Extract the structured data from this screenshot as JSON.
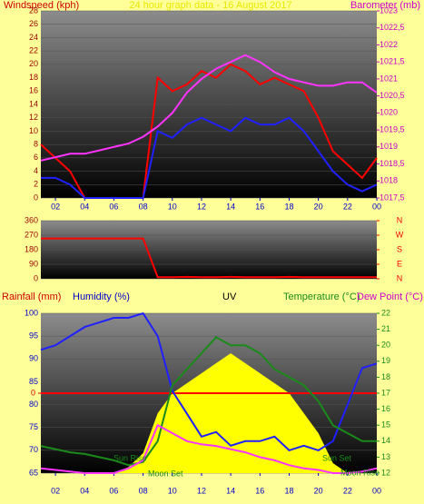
{
  "chart_data": [
    {
      "type": "line",
      "title": "24 hour graph data - 16 August 2017",
      "y_label": "Windspeed (kph)",
      "y2_label": "Barometer (mb)",
      "x": [
        1,
        2,
        3,
        4,
        5,
        6,
        7,
        8,
        9,
        10,
        11,
        12,
        13,
        14,
        15,
        16,
        17,
        18,
        19,
        20,
        21,
        22,
        23,
        24
      ],
      "xlim": [
        1,
        24
      ],
      "xticks": [
        {
          "value": 2,
          "label": "02"
        },
        {
          "value": 4,
          "label": "04"
        },
        {
          "value": 6,
          "label": "06"
        },
        {
          "value": 8,
          "label": "08"
        },
        10,
        12,
        14,
        16,
        18,
        20,
        22,
        {
          "value": 24,
          "label": "00"
        }
      ],
      "ylim": [
        0,
        28
      ],
      "yticks": [
        0,
        2,
        4,
        6,
        8,
        10,
        12,
        14,
        16,
        18,
        20,
        22,
        24,
        26,
        28
      ],
      "y2lim": [
        1017.5,
        1023
      ],
      "y2ticks": [
        {
          "value": 1017.5,
          "label": "1017,5"
        },
        1018,
        {
          "value": 1018.5,
          "label": "1018,5"
        },
        1019,
        {
          "value": 1019.5,
          "label": "1019,5"
        },
        1020,
        {
          "value": 1020.5,
          "label": "1020,5"
        },
        1021,
        {
          "value": 1021.5,
          "label": "1021,5"
        },
        1022,
        {
          "value": 1022.5,
          "label": "1022,5"
        },
        1023
      ],
      "series": [
        {
          "color": "#ff0000",
          "values": [
            8,
            6,
            4,
            0,
            0,
            0,
            0,
            0,
            18,
            16,
            17,
            19,
            18,
            20,
            19,
            17,
            18,
            17,
            16,
            12,
            7,
            5,
            3,
            6
          ]
        },
        {
          "color": "#2020ff",
          "values": [
            3,
            3,
            2,
            0,
            0,
            0,
            0,
            0,
            10,
            9,
            11,
            12,
            11,
            10,
            12,
            11,
            11,
            12,
            10,
            7,
            4,
            2,
            1,
            2
          ]
        },
        {
          "color": "#ff33ff",
          "axis": "y2",
          "values": [
            1018.6,
            1018.7,
            1018.8,
            1018.8,
            1018.9,
            1019.0,
            1019.1,
            1019.3,
            1019.6,
            1020.0,
            1020.6,
            1021.0,
            1021.3,
            1021.5,
            1021.7,
            1021.5,
            1021.2,
            1021.0,
            1020.9,
            1020.8,
            1020.8,
            1020.9,
            1020.9,
            1020.6
          ]
        }
      ]
    },
    {
      "type": "line",
      "x": [
        1,
        2,
        3,
        4,
        5,
        6,
        7,
        8,
        9,
        10,
        11,
        12,
        13,
        14,
        15,
        16,
        17,
        18,
        19,
        20,
        21,
        22,
        23,
        24
      ],
      "xlim": [
        1,
        24
      ],
      "ylim": [
        0,
        360
      ],
      "yticks": [
        0,
        90,
        180,
        270,
        360
      ],
      "y2ticks": [
        {
          "value": 360,
          "label": "N"
        },
        {
          "value": 270,
          "label": "W"
        },
        {
          "value": 180,
          "label": "S"
        },
        {
          "value": 90,
          "label": "E"
        },
        {
          "value": 0,
          "label": "N"
        }
      ],
      "series": [
        {
          "color": "#ff0000",
          "values": [
            250,
            250,
            250,
            250,
            250,
            250,
            250,
            250,
            10,
            10,
            12,
            10,
            10,
            12,
            10,
            10,
            10,
            12,
            10,
            10,
            10,
            10,
            10,
            10
          ]
        }
      ]
    },
    {
      "type": "line",
      "labels": [
        "Rainfall (mm)",
        "Humidity (%)",
        "UV",
        "Temperature (°C)",
        "Dew Point (°C)"
      ],
      "x": [
        1,
        2,
        3,
        4,
        5,
        6,
        7,
        8,
        9,
        10,
        11,
        12,
        13,
        14,
        15,
        16,
        17,
        18,
        19,
        20,
        21,
        22,
        23,
        24
      ],
      "xlim": [
        1,
        24
      ],
      "xticks": [
        {
          "value": 2,
          "label": "02"
        },
        {
          "value": 4,
          "label": "04"
        },
        {
          "value": 6,
          "label": "06"
        },
        {
          "value": 8,
          "label": "08"
        },
        10,
        12,
        14,
        16,
        18,
        20,
        22,
        {
          "value": 24,
          "label": "00"
        }
      ],
      "ylim": [
        65,
        100
      ],
      "yticks": [
        65,
        70,
        75,
        80,
        85,
        90,
        95,
        100
      ],
      "y2lim": [
        12,
        22
      ],
      "y2ticks": [
        12,
        13,
        14,
        15,
        16,
        17,
        18,
        19,
        20,
        21,
        22
      ],
      "y3lim": [
        -1,
        1
      ],
      "y3ticks": [
        0
      ],
      "y4lim": [
        0,
        8
      ],
      "annotations": [
        "Sun Rise",
        "Moon Set",
        "Sun Set",
        "Moon Rise"
      ],
      "series": [
        {
          "color": "#ffff00",
          "axis": "y4",
          "style": "area",
          "values": [
            0,
            0,
            0,
            0,
            0,
            0,
            0.3,
            1,
            3,
            4,
            4.5,
            5,
            5.5,
            6,
            5.5,
            5,
            4.5,
            4,
            3,
            2,
            0.5,
            0,
            0,
            0
          ]
        },
        {
          "color": "#ff0000",
          "axis": "y3",
          "values": [
            0,
            0,
            0,
            0,
            0,
            0,
            0,
            0,
            0,
            0,
            0,
            0,
            0,
            0,
            0,
            0,
            0,
            0,
            0,
            0,
            0,
            0,
            0,
            0
          ]
        },
        {
          "color": "#2020ff",
          "values": [
            92,
            93,
            95,
            97,
            98,
            99,
            99,
            100,
            95,
            83,
            78,
            73,
            74,
            71,
            72,
            72,
            73,
            70,
            71,
            70,
            72,
            80,
            88,
            89
          ]
        },
        {
          "color": "#1a8a1a",
          "axis": "y2",
          "values": [
            13.7,
            13.5,
            13.3,
            13.2,
            13,
            12.8,
            12.5,
            12.7,
            14,
            17.5,
            18.5,
            19.5,
            20.5,
            20,
            20,
            19.5,
            18.5,
            18,
            17.5,
            16.5,
            15,
            14.5,
            14,
            14
          ]
        },
        {
          "color": "#ff33ff",
          "axis": "y2",
          "values": [
            12.3,
            12.2,
            12.1,
            12,
            12,
            12,
            12.3,
            12.8,
            15,
            14.5,
            14,
            13.8,
            13.7,
            13.5,
            13.3,
            13,
            12.8,
            12.5,
            12.3,
            12.2,
            12,
            12,
            12.1,
            12.3
          ]
        }
      ]
    }
  ]
}
